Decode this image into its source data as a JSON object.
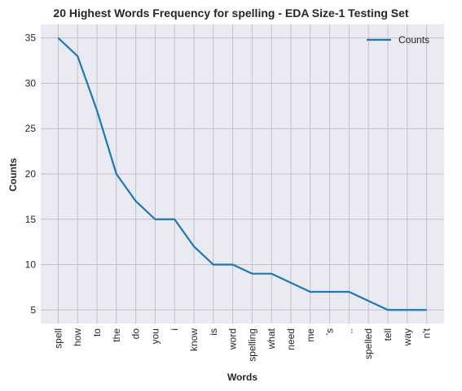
{
  "chart_data": {
    "type": "line",
    "title": "20 Highest Words Frequency for spelling - EDA Size-1 Testing Set",
    "xlabel": "Words",
    "ylabel": "Counts",
    "categories": [
      "spell",
      "how",
      "to",
      "the",
      "do",
      "you",
      "i",
      "know",
      "is",
      "word",
      "spelling",
      "what",
      "need",
      "me",
      "'s",
      "..",
      "spelled",
      "tell",
      "way",
      "n't"
    ],
    "series": [
      {
        "name": "Counts",
        "values": [
          35,
          33,
          27,
          20,
          17,
          15,
          15,
          12,
          10,
          10,
          9,
          9,
          8,
          7,
          7,
          7,
          6,
          5,
          5,
          5
        ]
      }
    ],
    "yticks": [
      5,
      10,
      15,
      20,
      25,
      30,
      35
    ],
    "ylim": [
      3.5,
      36.5
    ],
    "grid": true,
    "legend": "top-right",
    "colors": {
      "line": "#1f77b4",
      "background": "#eaeaf2",
      "grid": "#c0c0c8"
    }
  }
}
